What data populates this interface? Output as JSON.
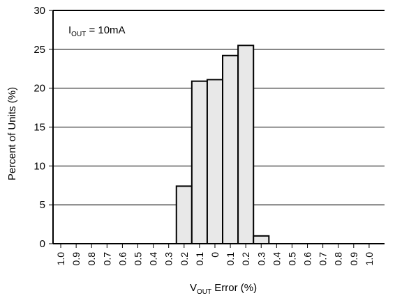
{
  "chart_data": {
    "type": "bar",
    "annotation": {
      "main": "I",
      "sub": "OUT",
      "rest": " = 10mA"
    },
    "xlabel": {
      "main": "V",
      "sub": "OUT",
      "rest": " Error (%)"
    },
    "ylabel": "Percent of Units (%)",
    "ylim": [
      0,
      30
    ],
    "yticks": [
      "0",
      "5",
      "10",
      "15",
      "20",
      "25",
      "30"
    ],
    "grid": "horizontal",
    "categories": [
      "1.0",
      "0.9",
      "0.8",
      "0.7",
      "0.6",
      "0.5",
      "0.4",
      "0.3",
      "0.2",
      "0.1",
      "0",
      "0.1",
      "0.2",
      "0.3",
      "0.4",
      "0.5",
      "0.6",
      "0.7",
      "0.8",
      "0.9",
      "1.0"
    ],
    "values": [
      0,
      0,
      0,
      0,
      0,
      0,
      0,
      0,
      7.4,
      20.9,
      21.1,
      24.2,
      25.5,
      1.0,
      0,
      0,
      0,
      0,
      0,
      0,
      0
    ],
    "bar_fill": "#e8e8e8",
    "bar_stroke": "#000000"
  }
}
